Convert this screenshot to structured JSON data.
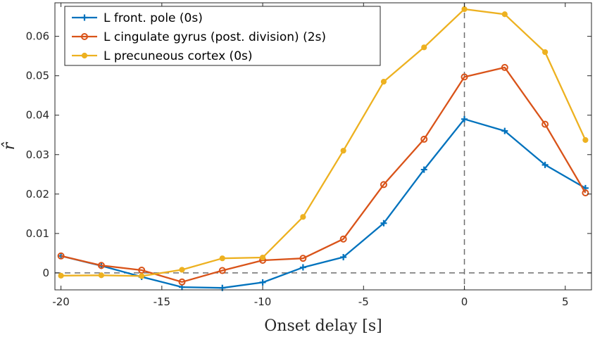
{
  "chart_data": {
    "type": "line",
    "title": "",
    "xlabel": "Onset delay [s]",
    "ylabel": "r̂",
    "xlim": [
      -20.3,
      6.3
    ],
    "ylim": [
      -0.0043,
      0.0685
    ],
    "xticks": [
      -20,
      -15,
      -10,
      -5,
      0,
      5
    ],
    "xtick_labels": [
      "-20",
      "-15",
      "-10",
      "-5",
      "0",
      "5"
    ],
    "yticks": [
      0,
      0.01,
      0.02,
      0.03,
      0.04,
      0.05,
      0.06
    ],
    "ytick_labels": [
      "0",
      "0.01",
      "0.02",
      "0.03",
      "0.04",
      "0.05",
      "0.06"
    ],
    "grid": false,
    "legend_position": "top-left",
    "reference_lines": {
      "x": 0,
      "y": 0,
      "style": "dashed"
    },
    "x": [
      -20,
      -18,
      -16,
      -14,
      -12,
      -10,
      -8,
      -6,
      -4,
      -2,
      0,
      2,
      4,
      6
    ],
    "series": [
      {
        "name": "L front. pole (0s)",
        "color": "#0072BD",
        "marker": "plus",
        "values": [
          0.0043,
          0.0018,
          -0.001,
          -0.0036,
          -0.0038,
          -0.0024,
          0.0014,
          0.004,
          0.0126,
          0.0262,
          0.039,
          0.036,
          0.0274,
          0.0215
        ]
      },
      {
        "name": "L cingulate gyrus (post. division) (2s)",
        "color": "#D95319",
        "marker": "circle",
        "values": [
          0.0043,
          0.0019,
          0.0007,
          -0.0023,
          0.0006,
          0.0032,
          0.0037,
          0.0086,
          0.0224,
          0.0339,
          0.0497,
          0.0521,
          0.0377,
          0.0203
        ]
      },
      {
        "name": "L precuneous cortex (0s)",
        "color": "#EDB120",
        "marker": "dot",
        "values": [
          -0.0007,
          -0.0006,
          -0.0008,
          0.0008,
          0.0037,
          0.0039,
          0.0142,
          0.031,
          0.0485,
          0.0572,
          0.0669,
          0.0656,
          0.056,
          0.0337
        ]
      }
    ]
  }
}
